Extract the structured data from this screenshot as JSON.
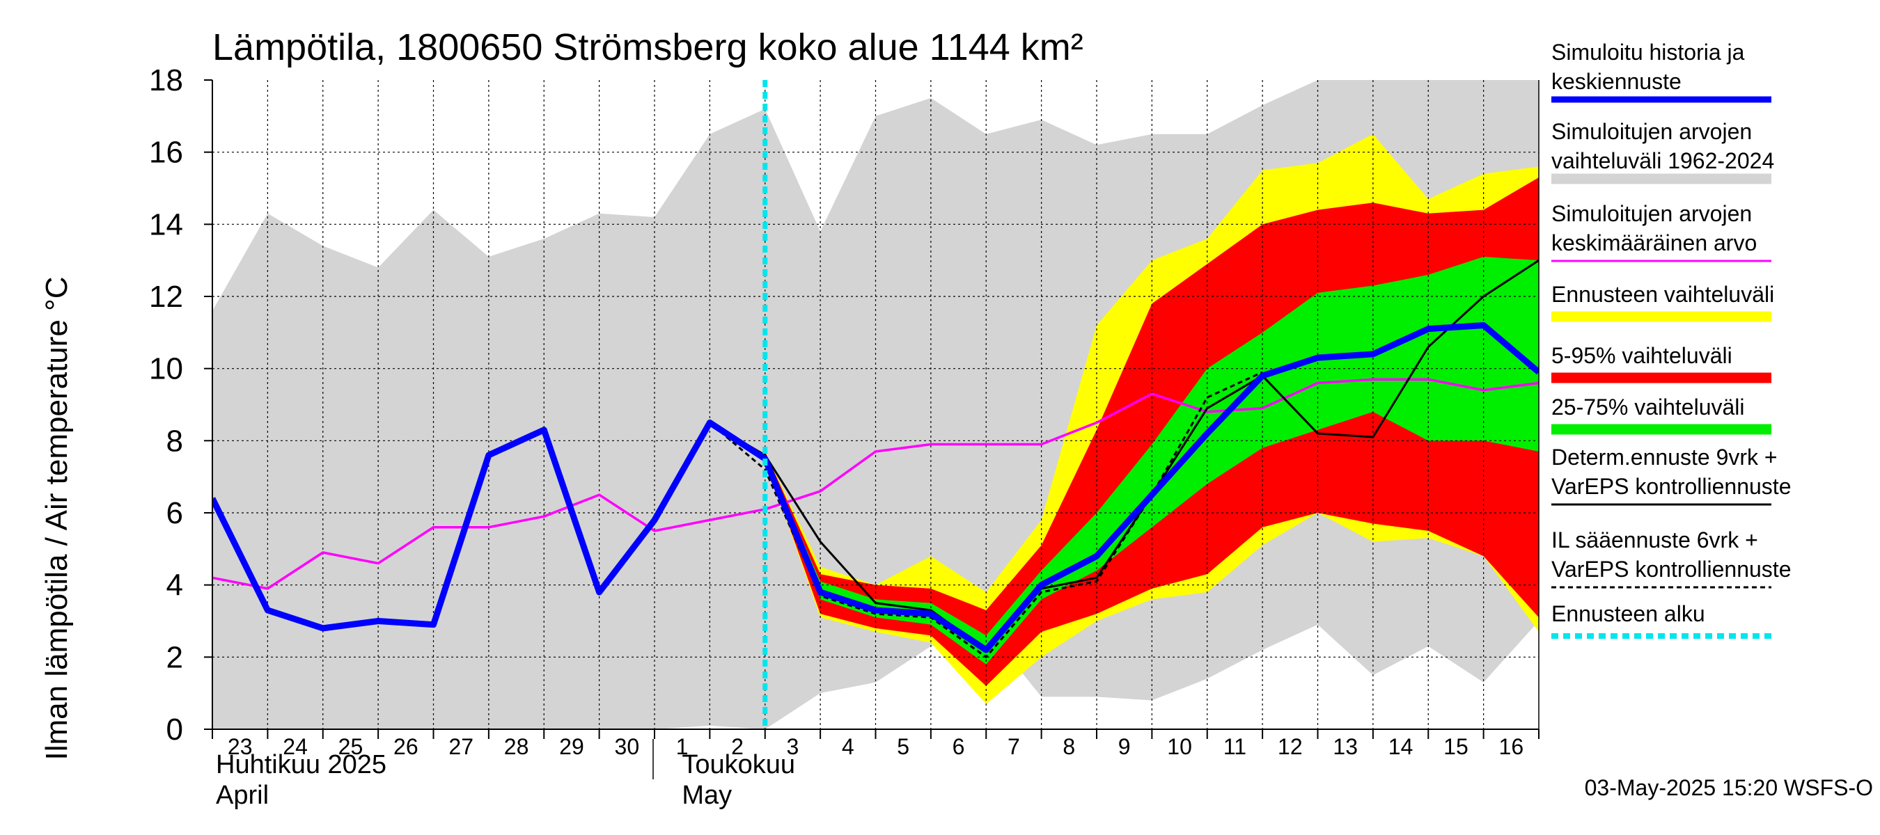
{
  "chart_data": {
    "type": "area",
    "title": "Lämpötila, 1800650 Strömsberg koko alue 1144 km²",
    "ylabel": "Ilman lämpötila / Air temperature    °C",
    "ylim": [
      0,
      18
    ],
    "yticks": [
      0,
      2,
      4,
      6,
      8,
      10,
      12,
      14,
      16,
      18
    ],
    "grid": true,
    "x_start": "2025-04-23",
    "x_end": "2025-05-17",
    "day_labels": [
      "23",
      "24",
      "25",
      "26",
      "27",
      "28",
      "29",
      "30",
      "1",
      "2",
      "3",
      "4",
      "5",
      "6",
      "7",
      "8",
      "9",
      "10",
      "11",
      "12",
      "13",
      "14",
      "15",
      "16"
    ],
    "month_labels": [
      {
        "fi": "Huhtikuu  2025",
        "en": "April"
      },
      {
        "fi": "Toukokuu",
        "en": "May"
      }
    ],
    "forecast_start_x": 10,
    "series": [
      {
        "name": "Simuloitujen arvojen vaihteluväli 1962-2024",
        "kind": "band",
        "color": "#d4d4d4",
        "x": [
          0,
          1,
          2,
          3,
          4,
          5,
          6,
          7,
          8,
          9,
          10,
          11,
          12,
          13,
          14,
          15,
          16,
          17,
          18,
          19,
          20,
          21,
          22,
          23,
          24
        ],
        "low": [
          0,
          0,
          0,
          0,
          0,
          0,
          0,
          0,
          0,
          0.1,
          0.0,
          1.0,
          1.3,
          2.3,
          2.8,
          0.9,
          0.9,
          0.8,
          1.4,
          2.2,
          2.9,
          1.5,
          2.3,
          1.3,
          3.0
        ],
        "high": [
          11.6,
          14.3,
          13.4,
          12.8,
          14.4,
          13.1,
          13.6,
          14.3,
          14.2,
          16.5,
          17.2,
          13.8,
          17.0,
          17.5,
          16.5,
          16.9,
          16.2,
          16.5,
          16.5,
          17.3,
          18,
          18,
          18,
          18,
          18
        ]
      },
      {
        "name": "Ennusteen vaihteluväli",
        "kind": "band",
        "color": "#ffff00",
        "x": [
          10,
          11,
          12,
          13,
          14,
          15,
          16,
          17,
          18,
          19,
          20,
          21,
          22,
          23,
          24
        ],
        "low": [
          7.5,
          3.1,
          2.7,
          2.4,
          0.7,
          2.0,
          3.0,
          3.6,
          3.8,
          5.1,
          6.0,
          5.2,
          5.3,
          4.8,
          2.7
        ],
        "high": [
          7.7,
          4.5,
          4.0,
          4.8,
          3.8,
          5.8,
          11.2,
          13.0,
          13.6,
          15.5,
          15.7,
          16.5,
          14.7,
          15.4,
          15.6
        ]
      },
      {
        "name": "5-95% vaihteluväli",
        "kind": "band",
        "color": "#ff0000",
        "x": [
          10,
          11,
          12,
          13,
          14,
          15,
          16,
          17,
          18,
          19,
          20,
          21,
          22,
          23,
          24
        ],
        "low": [
          7.5,
          3.2,
          2.8,
          2.6,
          1.2,
          2.7,
          3.2,
          3.9,
          4.3,
          5.6,
          6.0,
          5.7,
          5.5,
          4.8,
          3.1
        ],
        "high": [
          7.7,
          4.3,
          4.0,
          3.9,
          3.3,
          5.1,
          8.3,
          11.8,
          12.9,
          14.0,
          14.4,
          14.6,
          14.3,
          14.4,
          15.3
        ]
      },
      {
        "name": "25-75% vaihteluväli",
        "kind": "band",
        "color": "#00ee00",
        "x": [
          10,
          11,
          12,
          13,
          14,
          15,
          16,
          17,
          18,
          19,
          20,
          21,
          22,
          23,
          24
        ],
        "low": [
          7.5,
          3.6,
          3.1,
          2.9,
          1.8,
          3.6,
          4.4,
          5.6,
          6.8,
          7.8,
          8.3,
          8.8,
          8.0,
          8.0,
          7.7
        ],
        "high": [
          7.6,
          4.1,
          3.6,
          3.5,
          2.6,
          4.4,
          6.0,
          7.9,
          10.0,
          11.0,
          12.1,
          12.3,
          12.6,
          13.1,
          13.0
        ]
      },
      {
        "name": "Simuloitujen arvojen keskimääräinen arvo",
        "kind": "line",
        "color": "#ff00ff",
        "x": [
          0,
          1,
          2,
          3,
          4,
          5,
          6,
          7,
          8,
          9,
          10,
          11,
          12,
          13,
          14,
          15,
          16,
          17,
          18,
          19,
          20,
          21,
          22,
          23,
          24
        ],
        "y": [
          4.2,
          3.9,
          4.9,
          4.6,
          5.6,
          5.6,
          5.9,
          6.5,
          5.5,
          5.8,
          6.1,
          6.6,
          7.7,
          7.9,
          7.9,
          7.9,
          8.5,
          9.3,
          8.8,
          8.9,
          9.6,
          9.7,
          9.7,
          9.4,
          9.6
        ]
      },
      {
        "name": "Determ.ennuste 9vrk + VarEPS kontrolliennuste",
        "kind": "line",
        "color": "#000000",
        "x": [
          8,
          9,
          10,
          11,
          12,
          13,
          14,
          15,
          16,
          17,
          18,
          19,
          20,
          21,
          22,
          23,
          24
        ],
        "y": [
          5.8,
          8.5,
          7.6,
          5.2,
          3.5,
          3.3,
          2.2,
          3.9,
          4.2,
          6.5,
          8.9,
          9.8,
          8.2,
          8.1,
          10.6,
          12.0,
          13.0
        ]
      },
      {
        "name": "IL sääennuste 6vrk + VarEPS kontrolliennuste",
        "kind": "line",
        "color": "#000000",
        "dashed": true,
        "x": [
          8,
          9,
          10,
          11,
          12,
          13,
          14,
          15,
          16,
          17,
          18,
          19
        ],
        "y": [
          5.8,
          8.5,
          7.2,
          3.7,
          3.2,
          3.1,
          2.0,
          3.8,
          4.1,
          6.5,
          9.2,
          9.9
        ]
      },
      {
        "name": "Simuloitu historia ja keskiennuste",
        "kind": "line",
        "color": "#0000ff",
        "x": [
          0,
          1,
          2,
          3,
          4,
          5,
          6,
          7,
          8,
          9,
          10,
          11,
          12,
          13,
          14,
          15,
          16,
          17,
          18,
          19,
          20,
          21,
          22,
          23,
          24
        ],
        "y": [
          6.4,
          3.3,
          2.8,
          3.0,
          2.9,
          7.6,
          8.3,
          3.8,
          5.8,
          8.5,
          7.5,
          3.8,
          3.3,
          3.2,
          2.2,
          4.0,
          4.8,
          6.5,
          8.2,
          9.8,
          10.3,
          10.4,
          11.1,
          11.2,
          9.9
        ]
      }
    ],
    "legend": [
      {
        "line1": "Simuloitu historia ja",
        "line2": "keskiennuste",
        "color": "#0000ff",
        "style": "line"
      },
      {
        "line1": "Simuloitujen arvojen",
        "line2": "vaihteluväli 1962-2024",
        "color": "#d4d4d4",
        "style": "band"
      },
      {
        "line1": "Simuloitujen arvojen",
        "line2": "keskimääräinen arvo",
        "color": "#ff00ff",
        "style": "thin"
      },
      {
        "line1": "Ennusteen vaihteluväli",
        "line2": "",
        "color": "#ffff00",
        "style": "band"
      },
      {
        "line1": "5-95% vaihteluväli",
        "line2": "",
        "color": "#ff0000",
        "style": "band"
      },
      {
        "line1": "25-75% vaihteluväli",
        "line2": "",
        "color": "#00ee00",
        "style": "band"
      },
      {
        "line1": "Determ.ennuste 9vrk +",
        "line2": "VarEPS kontrolliennuste",
        "color": "#000000",
        "style": "thin"
      },
      {
        "line1": "IL sääennuste 6vrk  +",
        "line2": "  VarEPS kontrolliennuste",
        "color": "#000000",
        "style": "dashed"
      },
      {
        "line1": "Ennusteen alku",
        "line2": "",
        "color": "#00e5ee",
        "style": "dotted"
      }
    ],
    "legend_placement": "right",
    "timestamp": "03-May-2025 15:20 WSFS-O"
  }
}
